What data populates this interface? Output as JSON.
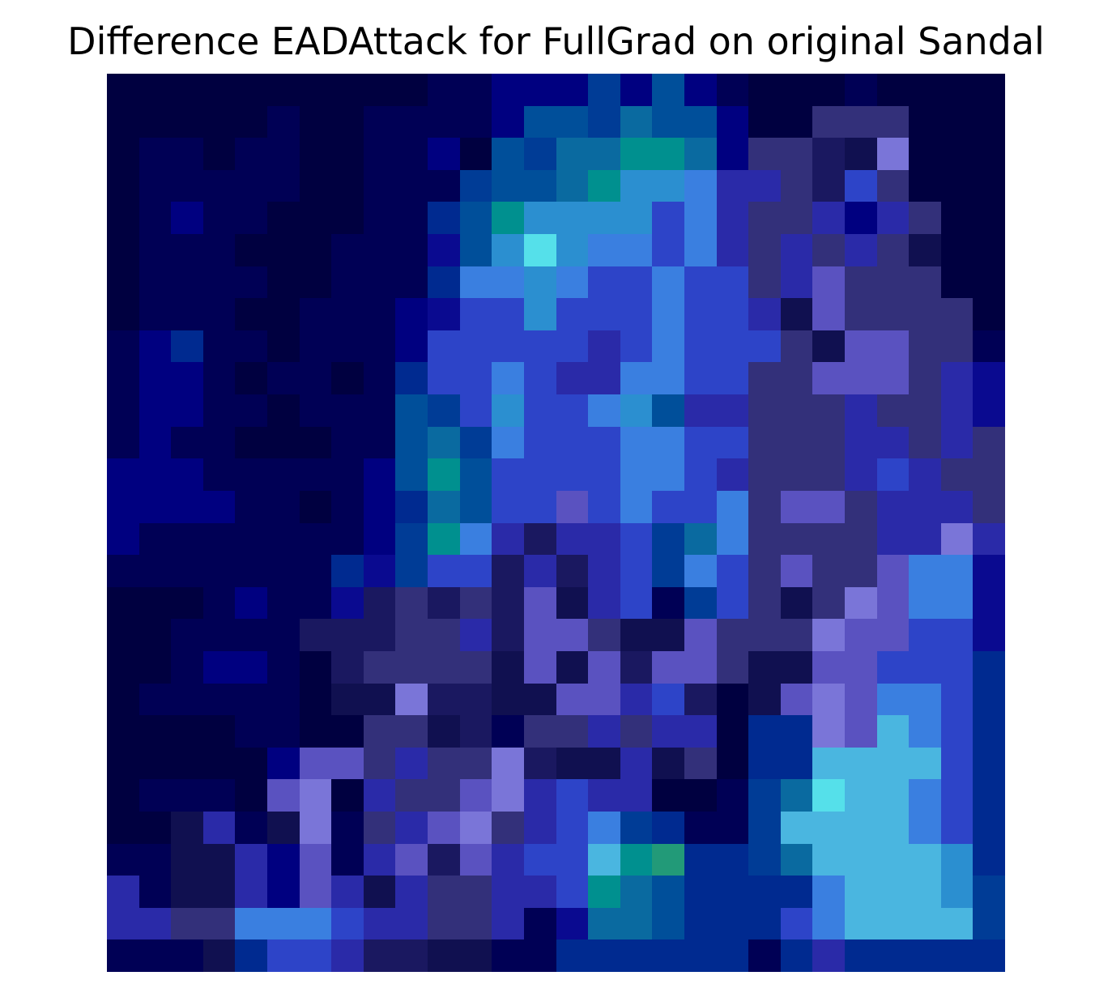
{
  "title": "Difference EADAttack for FullGrad on original Sandal",
  "image": {
    "grid_size": 28,
    "palette": {
      "a": "#000040",
      "b": "#000055",
      "c": "#000080",
      "d": "#0a0a90",
      "e": "#002a90",
      "f": "#003c96",
      "g": "#004f9a",
      "h": "#0a6aa0",
      "i": "#00908f",
      "j": "#2b8fd0",
      "k": "#3a7fe0",
      "l": "#2d44c8",
      "m": "#2a2aa8",
      "n": "#33307a",
      "o": "#5a52c0",
      "p": "#7a75d8",
      "q": "#4ab6e0",
      "r": "#55e0ea",
      "s": "#229a78",
      "t": "#1a1860",
      "u": "#101050"
    },
    "rows": [
      "aaaaaaaaaabbcccfcgcbaaabaaaa",
      "aaaaabaabbbbcggfhggcaannnaaa",
      "abbabbaabbcagfhhiihcnntupaaa",
      "abbbbbaabbbfgghijjkmmntlnaaa",
      "abcbbaaabbegijjjjlkmnnmcmnaa",
      "abbbaaabbbdgjrjkklkmnmnmnuaa",
      "abbbbaabbbekkjkllkllnmonnnaa",
      "abbbaabbbcdlljlllkllmuonnnna",
      "bcebbabbbclllllmlklllnuoonnb",
      "bccbabbabellklmmkkllnnooonmd",
      "bccbbabbbgfljllkjgmmnnnmnnmd",
      "bcbbaaabbghfklllkkllnnnmmnmn",
      "cccbbbbbcgigllllkklmnnnmlmnn",
      "ccccbbabcehgllolkllknoonmmmn",
      "cbbbbbbbcfikmtmmlfhknnnnmmpm",
      "bbbbbbbedflltmtmlfklnonnokkd",
      "aaabcbbdtntntoumlbflnunpokkd",
      "aabbbbtttnnmtoonuuonnnpoolld",
      "aabccbatnnnnuouotoonuuoollle",
      "abbbbbauupttuuoomltauopokkle",
      "aaaabbaannutbnnmnmmaeepoqkle",
      "aaaaacoonmnnptuumunaeeqqqqle",
      "abbbaopamnnopmlmmaabfhrqqkle",
      "aaumbupbnmopnmlkfebbfqqqqkle",
      "bbuumcobmotomllqiseefhqqqqje",
      "mbuumcomumnnmmlihgeeeekqqqjf",
      "mmnnkkklmmnnmbdhhgeeelkqqqqf",
      "bbbuellmttuubbeeeeeebemeeeee"
    ]
  }
}
